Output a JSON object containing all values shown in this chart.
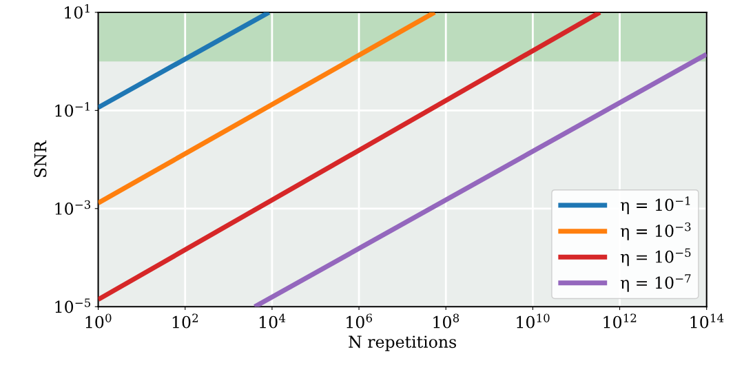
{
  "chart_data": {
    "type": "line",
    "xlabel": "N repetitions",
    "ylabel": "SNR",
    "log": "xy",
    "grid": true,
    "legend": "bottom right",
    "line_style": "solid",
    "marker": "none",
    "xlim": [
      1,
      100000000000000.0
    ],
    "ylim": [
      1e-05,
      10
    ],
    "xticks": [
      {
        "value": 1,
        "label": "10$^{0}$"
      },
      {
        "value": 100,
        "label": "10$^{2}$"
      },
      {
        "value": 10000,
        "label": "10$^{4}$"
      },
      {
        "value": 1000000,
        "label": "10$^{6}$"
      },
      {
        "value": 100000000,
        "label": "10$^{8}$"
      },
      {
        "value": 10000000000,
        "label": "10$^{10}$"
      },
      {
        "value": 1000000000000,
        "label": "10$^{12}$"
      },
      {
        "value": 100000000000000,
        "label": "10$^{14}$"
      }
    ],
    "yticks": [
      {
        "value": 1e-05,
        "label": "10$^{−5}$"
      },
      {
        "value": 0.001,
        "label": "10$^{−3}$"
      },
      {
        "value": 0.1,
        "label": "10$^{−1}$"
      },
      {
        "value": 10,
        "label": "10$^{1}$"
      }
    ],
    "bands": [
      {
        "axis": "y",
        "from": 1,
        "to": 10,
        "color": "#bcdcbd"
      }
    ],
    "series": [
      {
        "name": "η = 10$^{−1}$",
        "color": "#1f77b4",
        "x": [
          1,
          8500
        ],
        "values": [
          0.115,
          10
        ]
      },
      {
        "name": "η = 10$^{−3}$",
        "color": "#ff7f0e",
        "x": [
          1,
          55000000
        ],
        "values": [
          0.0013,
          10
        ]
      },
      {
        "name": "η = 10$^{−5}$",
        "color": "#d62728",
        "x": [
          1,
          350000000000
        ],
        "values": [
          1.4e-05,
          10
        ]
      },
      {
        "name": "η = 10$^{−7}$",
        "color": "#9467bd",
        "x": [
          4000,
          100000000000000
        ],
        "values": [
          1e-05,
          1.4
        ]
      }
    ]
  }
}
